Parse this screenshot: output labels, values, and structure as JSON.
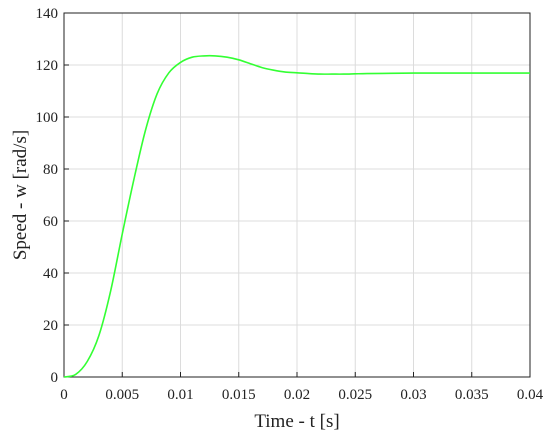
{
  "chart_data": {
    "type": "line",
    "title": "",
    "xlabel": "Time - t [s]",
    "ylabel": "Speed - w [rad/s]",
    "xlim": [
      0,
      0.04
    ],
    "ylim": [
      0,
      140
    ],
    "grid": true,
    "line_color": "#33ff33",
    "xticks": [
      "0",
      "0.005",
      "0.01",
      "0.015",
      "0.02",
      "0.025",
      "0.03",
      "0.035",
      "0.04"
    ],
    "yticks": [
      "0",
      "20",
      "40",
      "60",
      "80",
      "100",
      "120",
      "140"
    ],
    "series": [
      {
        "x": [
          0,
          0.001,
          0.002,
          0.003,
          0.004,
          0.005,
          0.006,
          0.007,
          0.008,
          0.009,
          0.01,
          0.011,
          0.012,
          0.013,
          0.014,
          0.015,
          0.016,
          0.017,
          0.018,
          0.019,
          0.02,
          0.021,
          0.022,
          0.023,
          0.024,
          0.025,
          0.026,
          0.028,
          0.03,
          0.032,
          0.034,
          0.036,
          0.038,
          0.04
        ],
        "y": [
          0,
          1,
          6,
          16,
          33,
          55,
          76,
          95,
          109,
          117,
          121,
          123,
          123.5,
          123.5,
          123,
          122,
          120.5,
          119,
          118,
          117.3,
          117,
          116.7,
          116.5,
          116.5,
          116.5,
          116.6,
          116.7,
          116.8,
          116.9,
          116.9,
          116.9,
          116.9,
          116.9,
          116.9
        ]
      }
    ]
  }
}
